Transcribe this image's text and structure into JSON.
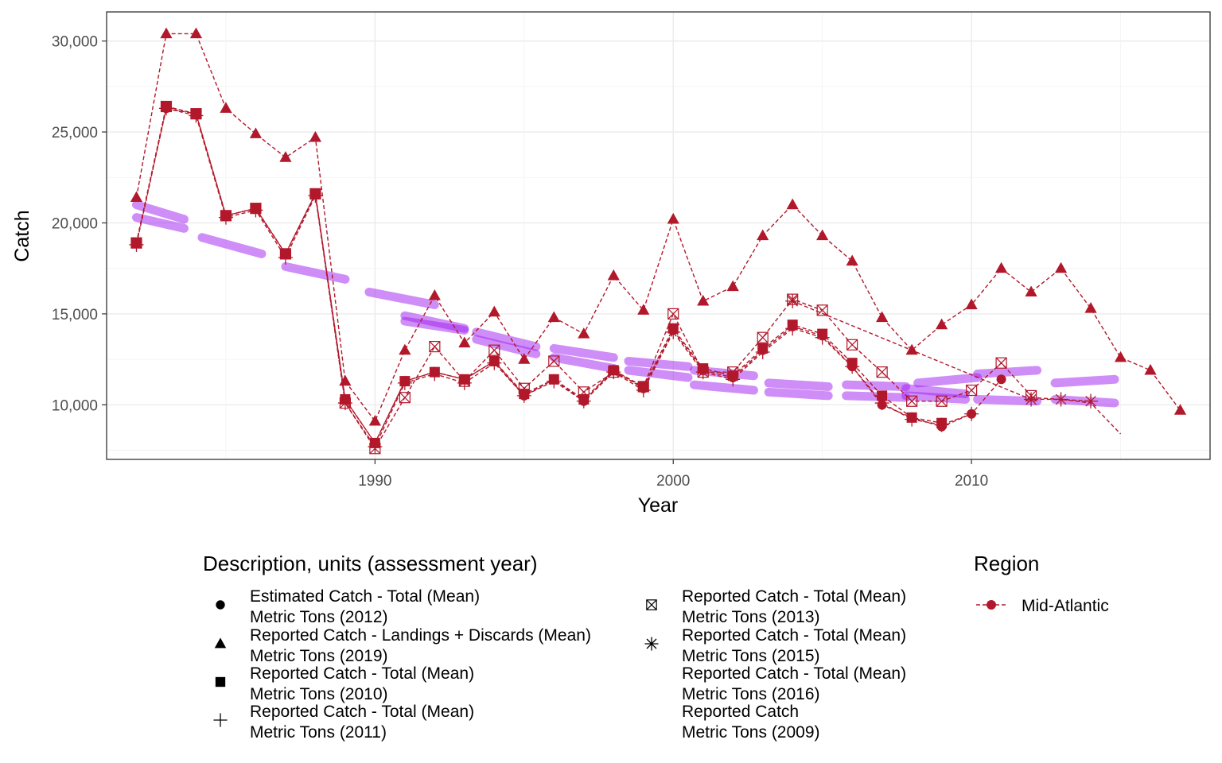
{
  "chart_data": {
    "type": "line",
    "xlabel": "Year",
    "ylabel": "Catch",
    "xlim": [
      1981,
      2018
    ],
    "ylim": [
      7000,
      31600
    ],
    "x_ticks": [
      {
        "value": 1990,
        "label": "1990"
      },
      {
        "value": 2000,
        "label": "2000"
      },
      {
        "value": 2010,
        "label": "2010"
      }
    ],
    "y_ticks": [
      {
        "value": 10000,
        "label": "10,000"
      },
      {
        "value": 15000,
        "label": "15,000"
      },
      {
        "value": 20000,
        "label": "20,000"
      },
      {
        "value": 25000,
        "label": "25,000"
      },
      {
        "value": 30000,
        "label": "30,000"
      }
    ],
    "grid": true,
    "colors": {
      "series": "#b2182b",
      "trend": "#a020f0",
      "panel_border": "#333333",
      "grid": "#ebebeb"
    },
    "series": [
      {
        "name": "Estimated Catch - Total (Mean) Metric Tons (2012)",
        "shape": "circle",
        "x": [
          1982,
          1983,
          1984,
          1985,
          1986,
          1987,
          1988,
          1989,
          1990,
          1991,
          1992,
          1993,
          1994,
          1995,
          1996,
          1997,
          1998,
          1999,
          2000,
          2001,
          2002,
          2003,
          2004,
          2005,
          2006,
          2007,
          2008,
          2009,
          2010,
          2011
        ],
        "y": [
          18900,
          26300,
          26000,
          20400,
          20800,
          18300,
          21600,
          10300,
          7900,
          11300,
          11800,
          11400,
          12400,
          10500,
          11400,
          10200,
          11900,
          10900,
          14100,
          11900,
          11500,
          13000,
          14300,
          13800,
          12100,
          10000,
          9300,
          8800,
          9500,
          11400
        ]
      },
      {
        "name": "Reported Catch - Landings + Discards (Mean) Metric Tons (2019)",
        "shape": "triangle",
        "x": [
          1982,
          1983,
          1984,
          1985,
          1986,
          1987,
          1988,
          1989,
          1990,
          1991,
          1992,
          1993,
          1994,
          1995,
          1996,
          1997,
          1998,
          1999,
          2000,
          2001,
          2002,
          2003,
          2004,
          2005,
          2006,
          2007,
          2008,
          2009,
          2010,
          2011,
          2012,
          2013,
          2014,
          2015,
          2016,
          2017
        ],
        "y": [
          21400,
          30400,
          30400,
          26300,
          24900,
          23600,
          24700,
          11300,
          9100,
          13000,
          16000,
          13400,
          15100,
          12500,
          14800,
          13900,
          17100,
          15200,
          20200,
          15700,
          16500,
          19300,
          21000,
          19300,
          17900,
          14800,
          13000,
          14400,
          15500,
          17500,
          16200,
          17500,
          15300,
          12600,
          11900,
          9700
        ]
      },
      {
        "name": "Reported Catch - Total (Mean) Metric Tons (2010)",
        "shape": "square",
        "x": [
          1982,
          1983,
          1984,
          1985,
          1986,
          1987,
          1988,
          1989,
          1990,
          1991,
          1992,
          1993,
          1994,
          1995,
          1996,
          1997,
          1998,
          1999,
          2000,
          2001,
          2002,
          2003,
          2004,
          2005,
          2006,
          2007,
          2008,
          2009
        ],
        "y": [
          18900,
          26400,
          26000,
          20400,
          20800,
          18300,
          21600,
          10300,
          7900,
          11300,
          11800,
          11400,
          12400,
          10600,
          11400,
          10300,
          11900,
          11000,
          14200,
          12000,
          11600,
          13100,
          14400,
          13900,
          12300,
          10500,
          9300,
          9000
        ]
      },
      {
        "name": "Reported Catch - Total (Mean) Metric Tons (2011)",
        "shape": "plus",
        "x": [
          1982,
          1983,
          1984,
          1985,
          1986,
          1987,
          1988,
          1989,
          1990,
          1991,
          1992,
          1993,
          1994,
          1995,
          1996,
          1997,
          1998,
          1999,
          2000,
          2001,
          2002,
          2003,
          2004,
          2005,
          2006,
          2007,
          2008,
          2009,
          2010
        ],
        "y": [
          18800,
          26300,
          25900,
          20300,
          20700,
          18100,
          21500,
          10100,
          7700,
          11200,
          11700,
          11200,
          12300,
          10500,
          11300,
          10200,
          11800,
          10800,
          14000,
          11800,
          11400,
          12900,
          14200,
          13700,
          12100,
          10100,
          9200,
          8900,
          9500
        ]
      },
      {
        "name": "Reported Catch - Total (Mean) Metric Tons (2013)",
        "shape": "square-cross",
        "x": [
          1982,
          1983,
          1984,
          1985,
          1986,
          1987,
          1988,
          1989,
          1990,
          1991,
          1992,
          1993,
          1994,
          1995,
          1996,
          1997,
          1998,
          1999,
          2000,
          2001,
          2002,
          2003,
          2004,
          2005,
          2006,
          2007,
          2008,
          2009,
          2010,
          2011,
          2012
        ],
        "y": [
          18900,
          26400,
          26000,
          20400,
          20800,
          18300,
          21600,
          10100,
          7600,
          10400,
          13200,
          11300,
          13000,
          10900,
          12400,
          10700,
          11800,
          11000,
          15000,
          11800,
          11800,
          13700,
          15800,
          15200,
          13300,
          11800,
          10200,
          10200,
          10800,
          12300,
          10500
        ]
      },
      {
        "name": "Reported Catch - Total (Mean) Metric Tons (2015)",
        "shape": "asterisk",
        "x": [
          2004,
          2012,
          2013,
          2014
        ],
        "y": [
          15700,
          10300,
          10300,
          10200
        ]
      },
      {
        "name": "Reported Catch - Total (Mean) Metric Tons (2016)",
        "shape": "none",
        "x": [
          2012,
          2013,
          2014,
          2015
        ],
        "y": [
          10400,
          10300,
          10100,
          8400
        ]
      }
    ],
    "trend_segments": [
      {
        "x": [
          1982,
          1983.6
        ],
        "y": [
          21000,
          20200
        ]
      },
      {
        "x": [
          1982,
          1983.6
        ],
        "y": [
          20300,
          19700
        ]
      },
      {
        "x": [
          1984.2,
          1986.2
        ],
        "y": [
          19200,
          18300
        ]
      },
      {
        "x": [
          1987,
          1989
        ],
        "y": [
          17600,
          16900
        ]
      },
      {
        "x": [
          1989.8,
          1992
        ],
        "y": [
          16200,
          15500
        ]
      },
      {
        "x": [
          1991,
          1993
        ],
        "y": [
          14900,
          14200
        ]
      },
      {
        "x": [
          1991,
          1993
        ],
        "y": [
          14600,
          14100
        ]
      },
      {
        "x": [
          1993.4,
          1995.4
        ],
        "y": [
          14000,
          13200
        ]
      },
      {
        "x": [
          1993.4,
          1995.4
        ],
        "y": [
          13600,
          12800
        ]
      },
      {
        "x": [
          1996,
          1998
        ],
        "y": [
          13100,
          12600
        ]
      },
      {
        "x": [
          1996,
          1998
        ],
        "y": [
          12600,
          12000
        ]
      },
      {
        "x": [
          1998.5,
          2000.5
        ],
        "y": [
          12400,
          12100
        ]
      },
      {
        "x": [
          1998.5,
          2000.5
        ],
        "y": [
          11900,
          11500
        ]
      },
      {
        "x": [
          2000.7,
          2002.7
        ],
        "y": [
          11900,
          11600
        ]
      },
      {
        "x": [
          2000.7,
          2002.7
        ],
        "y": [
          11100,
          10800
        ]
      },
      {
        "x": [
          2003.2,
          2005.2
        ],
        "y": [
          11200,
          11000
        ]
      },
      {
        "x": [
          2003.2,
          2005.2
        ],
        "y": [
          10700,
          10500
        ]
      },
      {
        "x": [
          2005.8,
          2007.8
        ],
        "y": [
          11100,
          11000
        ]
      },
      {
        "x": [
          2005.8,
          2007.8
        ],
        "y": [
          10500,
          10400
        ]
      },
      {
        "x": [
          2007.8,
          2009.8
        ],
        "y": [
          10900,
          10600
        ]
      },
      {
        "x": [
          2007.8,
          2009.8
        ],
        "y": [
          10500,
          10300
        ]
      },
      {
        "x": [
          2008.2,
          2010.2
        ],
        "y": [
          11200,
          11500
        ]
      },
      {
        "x": [
          2010.2,
          2012.2
        ],
        "y": [
          11700,
          11900
        ]
      },
      {
        "x": [
          2010.2,
          2012.2
        ],
        "y": [
          10300,
          10200
        ]
      },
      {
        "x": [
          2012.8,
          2014.8
        ],
        "y": [
          11200,
          11400
        ]
      },
      {
        "x": [
          2012.8,
          2014.8
        ],
        "y": [
          10300,
          10100
        ]
      }
    ]
  },
  "legend": {
    "description_title": "Description, units (assessment year)",
    "items": [
      {
        "shape": "circle",
        "line1": "Estimated Catch - Total (Mean)",
        "line2": "Metric Tons (2012)"
      },
      {
        "shape": "triangle",
        "line1": "Reported Catch - Landings + Discards (Mean)",
        "line2": "Metric Tons (2019)"
      },
      {
        "shape": "square",
        "line1": "Reported Catch - Total (Mean)",
        "line2": "Metric Tons (2010)"
      },
      {
        "shape": "plus",
        "line1": "Reported Catch - Total (Mean)",
        "line2": "Metric Tons (2011)"
      },
      {
        "shape": "square-cross",
        "line1": "Reported Catch - Total (Mean)",
        "line2": "Metric Tons (2013)"
      },
      {
        "shape": "asterisk",
        "line1": "Reported Catch - Total (Mean)",
        "line2": "Metric Tons (2015)"
      },
      {
        "shape": "none",
        "line1": "Reported Catch - Total (Mean)",
        "line2": "Metric Tons (2016)"
      },
      {
        "shape": "none",
        "line1": "Reported Catch",
        "line2": "Metric Tons (2009)"
      }
    ],
    "region_title": "Region",
    "region_label": "Mid-Atlantic"
  }
}
